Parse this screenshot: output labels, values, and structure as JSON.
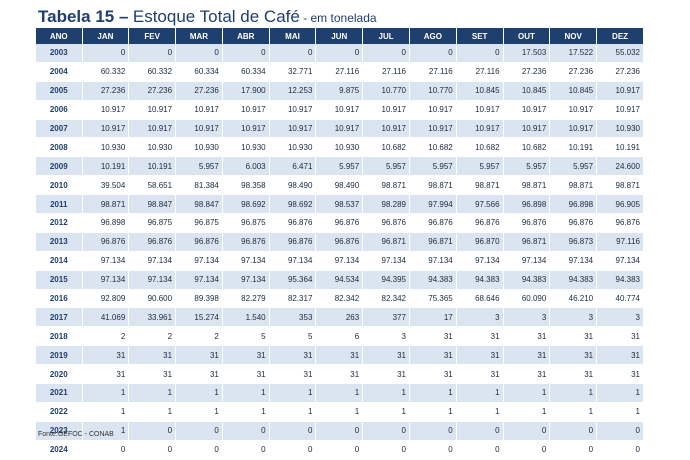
{
  "title": {
    "prefix": "Tabela 15 –",
    "main": "Estoque Total de Café",
    "sub": " - em tonelada"
  },
  "headers": [
    "ANO",
    "JAN",
    "FEV",
    "MAR",
    "ABR",
    "MAI",
    "JUN",
    "JUL",
    "AGO",
    "SET",
    "OUT",
    "NOV",
    "DEZ"
  ],
  "rows": [
    [
      "2003",
      "0",
      "0",
      "0",
      "0",
      "0",
      "0",
      "0",
      "0",
      "0",
      "17.503",
      "17.522",
      "55.032"
    ],
    [
      "2004",
      "60.332",
      "60.332",
      "60.334",
      "60.334",
      "32.771",
      "27.116",
      "27.116",
      "27.116",
      "27.116",
      "27.236",
      "27.236",
      "27.236"
    ],
    [
      "2005",
      "27.236",
      "27.236",
      "27.236",
      "17.900",
      "12.253",
      "9.875",
      "10.770",
      "10.770",
      "10.845",
      "10.845",
      "10.845",
      "10.917"
    ],
    [
      "2006",
      "10.917",
      "10.917",
      "10.917",
      "10.917",
      "10.917",
      "10.917",
      "10.917",
      "10.917",
      "10.917",
      "10.917",
      "10.917",
      "10.917"
    ],
    [
      "2007",
      "10.917",
      "10.917",
      "10.917",
      "10.917",
      "10.917",
      "10.917",
      "10.917",
      "10.917",
      "10.917",
      "10.917",
      "10.917",
      "10.930"
    ],
    [
      "2008",
      "10.930",
      "10.930",
      "10.930",
      "10.930",
      "10.930",
      "10.930",
      "10.682",
      "10.682",
      "10.682",
      "10.682",
      "10.191",
      "10.191"
    ],
    [
      "2009",
      "10.191",
      "10.191",
      "5.957",
      "6.003",
      "6.471",
      "5.957",
      "5.957",
      "5.957",
      "5.957",
      "5.957",
      "5.957",
      "24.600"
    ],
    [
      "2010",
      "39.504",
      "58.651",
      "81.384",
      "98.358",
      "98.490",
      "98.490",
      "98.871",
      "98.871",
      "98.871",
      "98.871",
      "98.871",
      "98.871"
    ],
    [
      "2011",
      "98.871",
      "98.847",
      "98.847",
      "98.692",
      "98.692",
      "98.537",
      "98.289",
      "97.994",
      "97.566",
      "96.898",
      "96.898",
      "96.905"
    ],
    [
      "2012",
      "96.898",
      "96.875",
      "96.875",
      "96.875",
      "96.876",
      "96.876",
      "96.876",
      "96.876",
      "96.876",
      "96.876",
      "96.876",
      "96.876"
    ],
    [
      "2013",
      "96.876",
      "96.876",
      "96.876",
      "96.876",
      "96.876",
      "96.876",
      "96.871",
      "96.871",
      "96.870",
      "96.871",
      "96.873",
      "97.116"
    ],
    [
      "2014",
      "97.134",
      "97.134",
      "97.134",
      "97.134",
      "97.134",
      "97.134",
      "97.134",
      "97.134",
      "97.134",
      "97.134",
      "97.134",
      "97.134"
    ],
    [
      "2015",
      "97.134",
      "97.134",
      "97.134",
      "97.134",
      "95.364",
      "94.534",
      "94.395",
      "94.383",
      "94.383",
      "94.383",
      "94.383",
      "94.383"
    ],
    [
      "2016",
      "92.809",
      "90.600",
      "89.398",
      "82.279",
      "82.317",
      "82.342",
      "82.342",
      "75.365",
      "68.646",
      "60.090",
      "46.210",
      "40.774"
    ],
    [
      "2017",
      "41.069",
      "33.961",
      "15.274",
      "1.540",
      "353",
      "263",
      "377",
      "17",
      "3",
      "3",
      "3",
      "3"
    ],
    [
      "2018",
      "2",
      "2",
      "2",
      "5",
      "5",
      "6",
      "3",
      "31",
      "31",
      "31",
      "31",
      "31"
    ],
    [
      "2019",
      "31",
      "31",
      "31",
      "31",
      "31",
      "31",
      "31",
      "31",
      "31",
      "31",
      "31",
      "31"
    ],
    [
      "2020",
      "31",
      "31",
      "31",
      "31",
      "31",
      "31",
      "31",
      "31",
      "31",
      "31",
      "31",
      "31"
    ],
    [
      "2021",
      "1",
      "1",
      "1",
      "1",
      "1",
      "1",
      "1",
      "1",
      "1",
      "1",
      "1",
      "1"
    ],
    [
      "2022",
      "1",
      "1",
      "1",
      "1",
      "1",
      "1",
      "1",
      "1",
      "1",
      "1",
      "1",
      "1"
    ],
    [
      "2023",
      "1",
      "0",
      "0",
      "0",
      "0",
      "0",
      "0",
      "0",
      "0",
      "0",
      "0",
      "0"
    ],
    [
      "2024",
      "0",
      "0",
      "0",
      "0",
      "0",
      "0",
      "0",
      "0",
      "0",
      "0",
      "0",
      "0"
    ]
  ],
  "source": "Fonte:GEFOC - CONAB",
  "colors": {
    "header_bg": "#1f3f6e",
    "stripe": "#dbe5f1",
    "title": "#1f3f6e"
  }
}
